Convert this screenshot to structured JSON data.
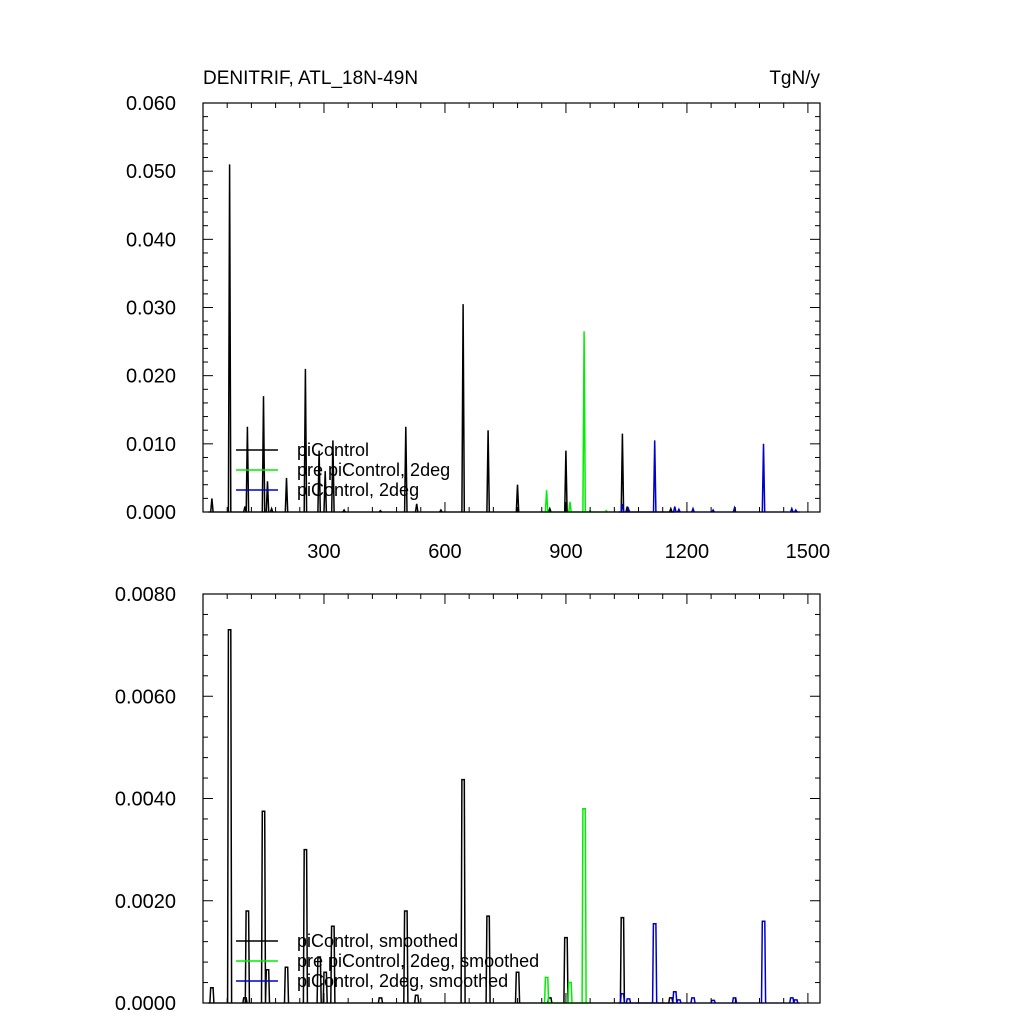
{
  "chart_data": [
    {
      "type": "line",
      "title": "DENITRIF, ATL_18N-49N",
      "units": "TgN/y",
      "xlim": [
        0,
        1530
      ],
      "ylim": [
        0,
        0.06
      ],
      "xticks": [
        300,
        600,
        900,
        1200,
        1500
      ],
      "xtick_labels": [
        "300",
        "600",
        "900",
        "1200",
        "1500"
      ],
      "yticks": [
        0,
        0.01,
        0.02,
        0.03,
        0.04,
        0.05,
        0.06
      ],
      "ytick_labels": [
        "0.000",
        "0.010",
        "0.020",
        "0.030",
        "0.040",
        "0.050",
        "0.060"
      ],
      "legend_position": "lower-left",
      "series": [
        {
          "name": "piControl",
          "color": "#000000",
          "spikes": [
            [
              22,
              0.002
            ],
            [
              66,
              0.051
            ],
            [
              104,
              0.0008
            ],
            [
              110,
              0.0125
            ],
            [
              150,
              0.017
            ],
            [
              160,
              0.0045
            ],
            [
              170,
              0.0005
            ],
            [
              207,
              0.005
            ],
            [
              254,
              0.021
            ],
            [
              288,
              0.009
            ],
            [
              303,
              0.006
            ],
            [
              322,
              0.0105
            ],
            [
              350,
              0.0003
            ],
            [
              440,
              0.0002
            ],
            [
              503,
              0.0125
            ],
            [
              530,
              0.0012
            ],
            [
              590,
              0.0003
            ],
            [
              645,
              0.0305
            ],
            [
              707,
              0.012
            ],
            [
              780,
              0.004
            ],
            [
              860,
              0.0005
            ],
            [
              900,
              0.009
            ],
            [
              1040,
              0.0115
            ],
            [
              1052,
              0.0008
            ],
            [
              1160,
              0.0005
            ]
          ]
        },
        {
          "name": "pre piControl, 2deg",
          "color": "#00ee00",
          "spikes": [
            [
              852,
              0.0032
            ],
            [
              910,
              0.0015
            ],
            [
              945,
              0.0265
            ],
            [
              960,
              0.0002
            ],
            [
              1000,
              0.0002
            ]
          ]
        },
        {
          "name": "piControl, 2deg",
          "color": "#0000cc",
          "spikes": [
            [
              1040,
              0.0012
            ],
            [
              1055,
              0.0005
            ],
            [
              1120,
              0.0105
            ],
            [
              1170,
              0.0008
            ],
            [
              1180,
              0.0004
            ],
            [
              1215,
              0.0005
            ],
            [
              1265,
              0.0003
            ],
            [
              1318,
              0.0006
            ],
            [
              1390,
              0.01
            ],
            [
              1460,
              0.0005
            ],
            [
              1470,
              0.0003
            ]
          ]
        }
      ]
    },
    {
      "type": "line",
      "xlim": [
        0,
        1530
      ],
      "ylim": [
        0,
        0.008
      ],
      "xticks": [
        300,
        600,
        900,
        1200,
        1500
      ],
      "yticks": [
        0,
        0.002,
        0.004,
        0.006,
        0.008
      ],
      "ytick_labels": [
        "0.0000",
        "0.0020",
        "0.0040",
        "0.0060",
        "0.0080"
      ],
      "legend_position": "lower-left",
      "series": [
        {
          "name": "piControl, smoothed",
          "color": "#000000",
          "pulses": [
            [
              22,
              0.0003
            ],
            [
              66,
              0.0073
            ],
            [
              104,
              0.0001
            ],
            [
              110,
              0.0018
            ],
            [
              150,
              0.00375
            ],
            [
              160,
              0.00065
            ],
            [
              207,
              0.0007
            ],
            [
              254,
              0.003
            ],
            [
              288,
              0.0009
            ],
            [
              303,
              0.0006
            ],
            [
              322,
              0.0015
            ],
            [
              440,
              0.0001
            ],
            [
              503,
              0.0018
            ],
            [
              530,
              0.00015
            ],
            [
              645,
              0.00437
            ],
            [
              707,
              0.0017
            ],
            [
              780,
              0.0006
            ],
            [
              860,
              0.0001
            ],
            [
              900,
              0.00128
            ],
            [
              1040,
              0.00167
            ],
            [
              1160,
              0.0001
            ]
          ]
        },
        {
          "name": "pre piControl, 2deg, smoothed",
          "color": "#00ee00",
          "pulses": [
            [
              852,
              0.0005
            ],
            [
              910,
              0.0004
            ],
            [
              945,
              0.0038
            ]
          ]
        },
        {
          "name": "piControl, 2deg, smoothed",
          "color": "#0000cc",
          "pulses": [
            [
              1040,
              0.00018
            ],
            [
              1055,
              8e-05
            ],
            [
              1120,
              0.00155
            ],
            [
              1170,
              0.00022
            ],
            [
              1180,
              6e-05
            ],
            [
              1215,
              0.0001
            ],
            [
              1265,
              5e-05
            ],
            [
              1318,
              0.0001
            ],
            [
              1390,
              0.0016
            ],
            [
              1460,
              0.0001
            ],
            [
              1470,
              6e-05
            ]
          ]
        }
      ]
    }
  ]
}
